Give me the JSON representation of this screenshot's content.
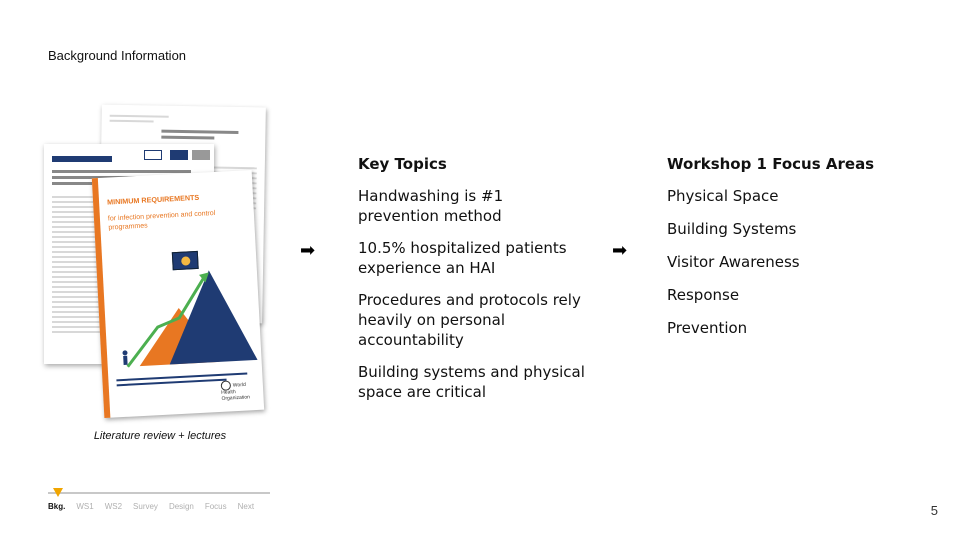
{
  "slide": {
    "title": "Background Information",
    "page_number": "5"
  },
  "documents": {
    "caption": "Literature review + lectures",
    "front_title": "MINIMUM REQUIREMENTS",
    "front_subtitle": "for infection prevention and control programmes",
    "who_label": "World Health Organization",
    "accent_color": "#e87722",
    "navy_color": "#1f3b73"
  },
  "key_topics": {
    "heading": "Key Topics",
    "items": [
      "Handwashing is #1 prevention method",
      "10.5% hospitalized patients experience an HAI",
      "Procedures and protocols rely heavily on personal accountability",
      "Building systems and physical space are critical"
    ]
  },
  "focus_areas": {
    "heading": "Workshop 1 Focus Areas",
    "items": [
      "Physical Space",
      "Building Systems",
      "Visitor Awareness",
      "Response",
      "Prevention"
    ]
  },
  "arrows": {
    "glyph": "➡"
  },
  "progress_nav": {
    "marker_color": "#f0a500",
    "steps": [
      {
        "label": "Bkg.",
        "active": true
      },
      {
        "label": "WS1",
        "active": false
      },
      {
        "label": "WS2",
        "active": false
      },
      {
        "label": "Survey",
        "active": false
      },
      {
        "label": "Design",
        "active": false
      },
      {
        "label": "Focus",
        "active": false
      },
      {
        "label": "Next",
        "active": false
      }
    ]
  }
}
